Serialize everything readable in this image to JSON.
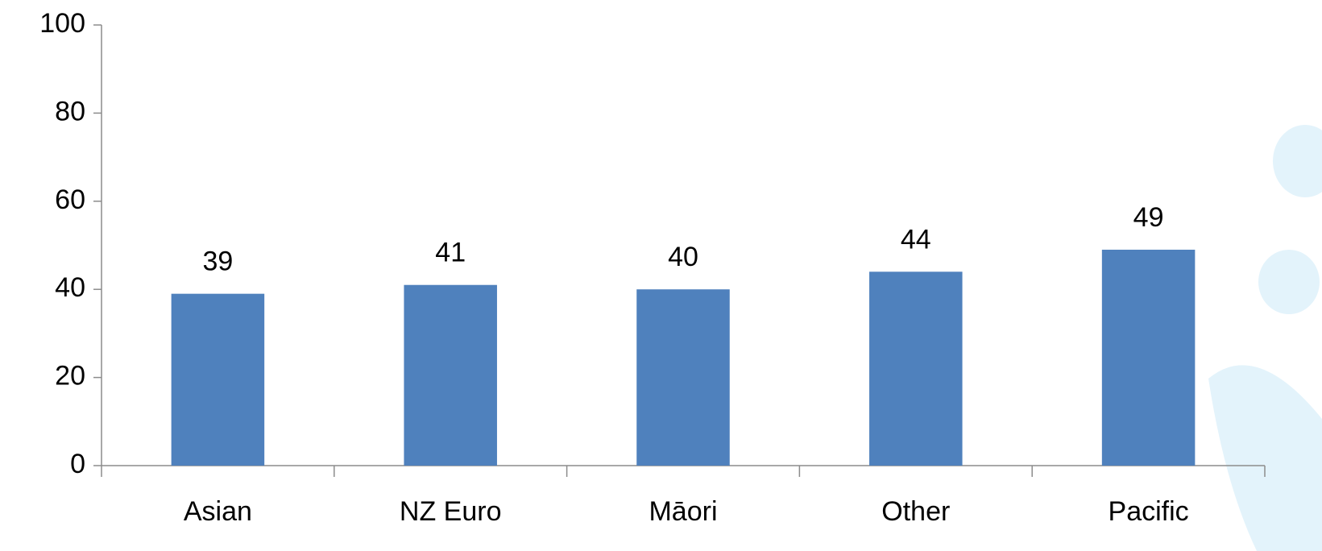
{
  "chart_data": {
    "type": "bar",
    "categories": [
      "Asian",
      "NZ Euro",
      "Māori",
      "Other",
      "Pacific"
    ],
    "values": [
      39,
      41,
      40,
      44,
      49
    ],
    "color": "#4f81bd",
    "ylim": [
      0,
      100
    ],
    "yticks": [
      0,
      20,
      40,
      60,
      80,
      100
    ],
    "grid": false
  }
}
